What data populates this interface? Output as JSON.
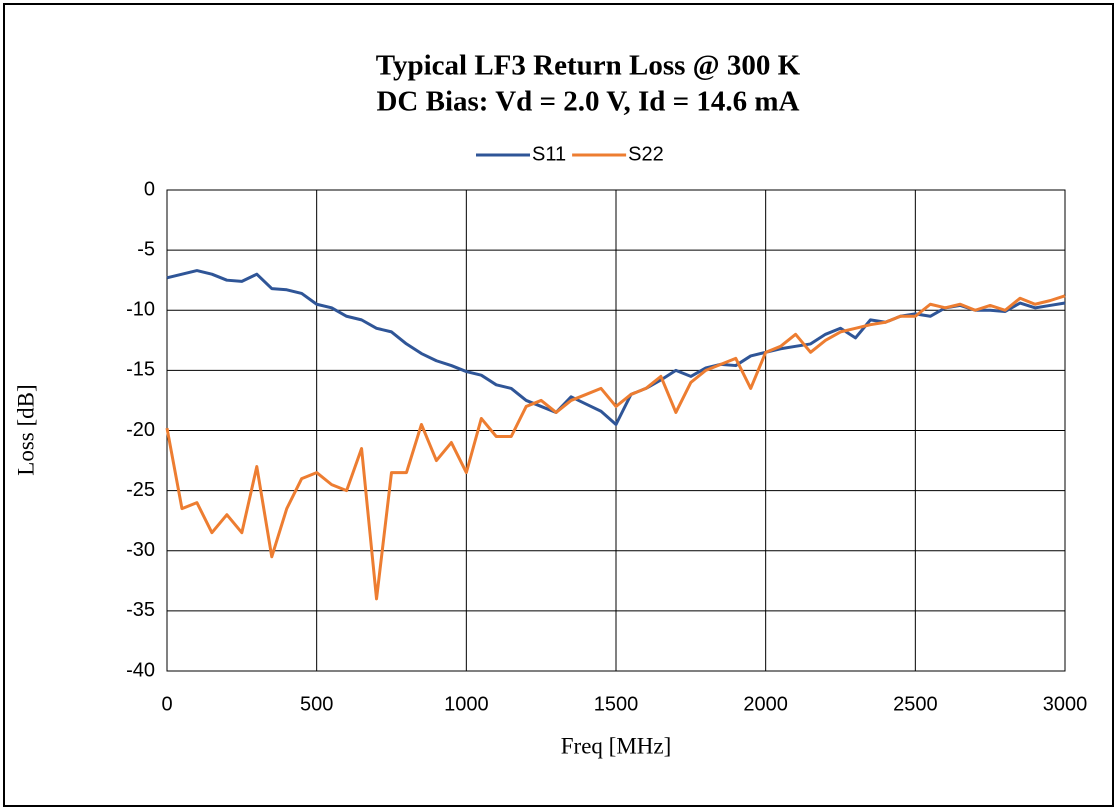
{
  "chart_data": {
    "type": "line",
    "title": "Typical LF3 Return Loss @ 300 K",
    "subtitle": "DC Bias: Vd = 2.0 V, Id = 14.6 mA",
    "x_label": "Freq [MHz]",
    "y_label": "Loss [dB]",
    "x": [
      0,
      50,
      100,
      150,
      200,
      250,
      300,
      350,
      400,
      450,
      500,
      550,
      600,
      650,
      700,
      750,
      800,
      850,
      900,
      950,
      1000,
      1050,
      1100,
      1150,
      1200,
      1250,
      1300,
      1350,
      1400,
      1450,
      1500,
      1550,
      1600,
      1650,
      1700,
      1750,
      1800,
      1850,
      1900,
      1950,
      2000,
      2050,
      2100,
      2150,
      2200,
      2250,
      2300,
      2350,
      2400,
      2450,
      2500,
      2550,
      2600,
      2650,
      2700,
      2750,
      2800,
      2850,
      2900,
      2950,
      3000
    ],
    "series": [
      {
        "name": "S11",
        "color": "#2f5597",
        "values": [
          -7.3,
          -7.0,
          -6.7,
          -7.0,
          -7.5,
          -7.6,
          -7.0,
          -8.2,
          -8.3,
          -8.6,
          -9.5,
          -9.8,
          -10.5,
          -10.8,
          -11.5,
          -11.8,
          -12.8,
          -13.6,
          -14.2,
          -14.6,
          -15.1,
          -15.4,
          -16.2,
          -16.5,
          -17.5,
          -18.0,
          -18.5,
          -17.2,
          -17.8,
          -18.4,
          -19.5,
          -17.0,
          -16.5,
          -15.8,
          -15.0,
          -15.5,
          -14.8,
          -14.5,
          -14.6,
          -13.8,
          -13.5,
          -13.2,
          -13.0,
          -12.8,
          -12.0,
          -11.5,
          -12.3,
          -10.8,
          -11.0,
          -10.5,
          -10.3,
          -10.5,
          -9.8,
          -9.6,
          -10.0,
          -10.0,
          -10.1,
          -9.4,
          -9.8,
          -9.6,
          -9.4
        ]
      },
      {
        "name": "S22",
        "color": "#ed7d31",
        "values": [
          -19.8,
          -26.5,
          -26.0,
          -28.5,
          -27.0,
          -28.5,
          -23.0,
          -30.5,
          -26.5,
          -24.0,
          -23.5,
          -24.5,
          -25.0,
          -21.5,
          -34.0,
          -23.5,
          -23.5,
          -19.5,
          -22.5,
          -21.0,
          -23.5,
          -19.0,
          -20.5,
          -20.5,
          -18.0,
          -17.5,
          -18.5,
          -17.5,
          -17.0,
          -16.5,
          -18.0,
          -17.0,
          -16.5,
          -15.5,
          -18.5,
          -16.0,
          -15.0,
          -14.5,
          -14.0,
          -16.5,
          -13.5,
          -13.0,
          -12.0,
          -13.5,
          -12.5,
          -11.8,
          -11.5,
          -11.2,
          -11.0,
          -10.5,
          -10.5,
          -9.5,
          -9.8,
          -9.5,
          -10.0,
          -9.6,
          -10.0,
          -9.0,
          -9.5,
          -9.2,
          -8.8
        ]
      }
    ],
    "xlim": [
      0,
      3000
    ],
    "xticks": [
      0,
      500,
      1000,
      1500,
      2000,
      2500,
      3000
    ],
    "ylim": [
      -40,
      0
    ],
    "yticks": [
      0,
      -5,
      -10,
      -15,
      -20,
      -25,
      -30,
      -35,
      -40
    ],
    "grid": true,
    "legend": "top"
  }
}
